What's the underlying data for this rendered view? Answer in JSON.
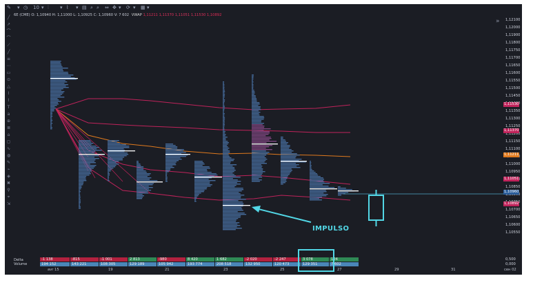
{
  "toolbar": {
    "items": [
      "✎",
      "▾",
      "◷",
      "10",
      "▾",
      "⫶",
      "▾",
      "⌇",
      "▾",
      "▤",
      "⌕",
      "⌕",
      "⇔",
      "✥",
      "▾",
      "⟳",
      "▾",
      "▦",
      "▾"
    ]
  },
  "info": {
    "symbol": "6E (CME)",
    "ohlc": "O: 1,10940  H: 1,11000  L: 1,10925  C: 1,10960  V: 7 602",
    "vwap_label": "VWAP",
    "vwap_values": [
      "1,11211",
      "1,11370",
      "1,11051",
      "1,11530",
      "1,10892"
    ]
  },
  "colors": {
    "background": "#1b1d24",
    "profile": "#4a74a8",
    "poc": "#ffffff",
    "band": "#c0235b",
    "vwap": "#e07a1e",
    "annotation": "#52d7e6",
    "delta_pos": "#2f8a55",
    "delta_neg": "#b3213f",
    "volume": "#4a86b8"
  },
  "axis": {
    "labels": [
      "1,12100",
      "1,12000",
      "1,11900",
      "1,11800",
      "1,11750",
      "1,11700",
      "1,11650",
      "1,11600",
      "1,11550",
      "1,11500",
      "1,11450",
      "1,11400",
      "1,11350",
      "1,11300",
      "1,11250",
      "1,11200",
      "1,11150",
      "1,11100",
      "1,11050",
      "1,11000",
      "1,10950",
      "1,10900",
      "1,10850",
      "1,10800",
      "1,10750",
      "1,10700",
      "1,10650",
      "1,10600",
      "1,10550"
    ],
    "badges": [
      {
        "text": "1,11530",
        "color": "#c0235b"
      },
      {
        "text": "1,11370",
        "color": "#c0235b"
      },
      {
        "text": "1,11211",
        "color": "#e07a1e"
      },
      {
        "text": "1,11051",
        "color": "#c0235b"
      },
      {
        "text": "1,10960",
        "color": "#2a5d9a"
      },
      {
        "text": "1,10892",
        "color": "#c0235b"
      }
    ],
    "osc_labels": [
      "0,500",
      "0,000"
    ]
  },
  "bottom": {
    "delta_label": "Delta",
    "volume_label": "Volume",
    "delta": [
      "-1 138",
      "-815",
      "-1 001",
      "2 813",
      "-980",
      "8 420",
      "1 682",
      "-2 020",
      "-2 247",
      "3 078",
      "104"
    ],
    "volume": [
      "194 152",
      "143 221",
      "108 305",
      "129 189",
      "105 942",
      "193 774",
      "208 518",
      "132 950",
      "120 473",
      "129 351",
      "7 602"
    ]
  },
  "xaxis": [
    "avr 15",
    "19",
    "21",
    "23",
    "25",
    "27",
    "29",
    "31",
    "сен 02"
  ],
  "annotation": {
    "label": "IMPULSO"
  }
}
